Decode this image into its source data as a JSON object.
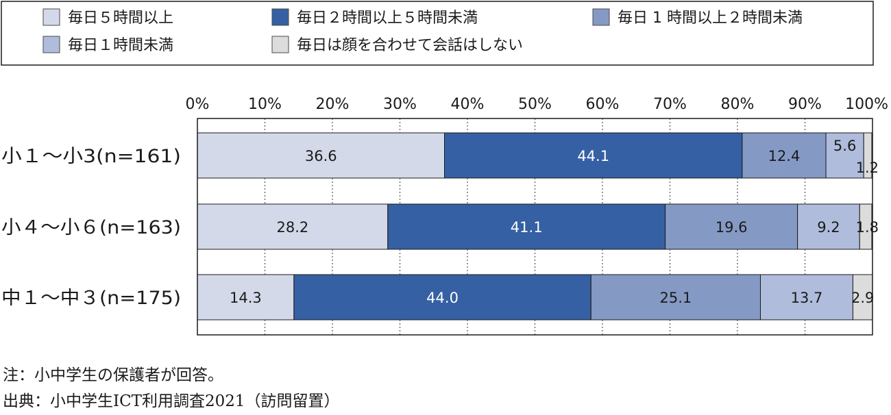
{
  "chart_data": {
    "type": "bar",
    "orientation": "horizontal",
    "stacked": true,
    "categories": [
      "小１～小3(n=161)",
      "小４～小６(n=163)",
      "中１～中３(n=175)"
    ],
    "series": [
      {
        "name": "毎日５時間以上",
        "color": "#d3d9e8",
        "label_color": "#1a1a1a",
        "values": [
          36.6,
          28.2,
          14.3
        ],
        "labels": [
          "36.6",
          "28.2",
          "14.3"
        ]
      },
      {
        "name": "毎日２時間以上５時間未満",
        "color": "#3560a3",
        "label_color": "#ffffff",
        "values": [
          44.1,
          41.1,
          44.0
        ],
        "labels": [
          "44.1",
          "41.1",
          "44.0"
        ]
      },
      {
        "name": "毎日 1 時間以上２時間未満",
        "color": "#8599c5",
        "label_color": "#1a1a1a",
        "values": [
          12.4,
          19.6,
          25.1
        ],
        "labels": [
          "12.4",
          "19.6",
          "25.1"
        ]
      },
      {
        "name": "毎日１時間未満",
        "color": "#b0bcdc",
        "label_color": "#1a1a1a",
        "values": [
          5.6,
          9.2,
          13.7
        ],
        "labels": [
          "5.6",
          "9.2",
          "13.7"
        ]
      },
      {
        "name": "毎日は顔を合わせて会話はしない",
        "color": "#dcdcdc",
        "label_color": "#1a1a1a",
        "values": [
          1.2,
          1.8,
          2.9
        ],
        "labels": [
          "1.2",
          "1.8",
          "2.9"
        ]
      }
    ],
    "xlim": [
      0,
      100
    ],
    "x_ticks": [
      "0%",
      "10%",
      "20%",
      "30%",
      "40%",
      "50%",
      "60%",
      "70%",
      "80%",
      "90%",
      "100%"
    ],
    "grid": "vertical dotted",
    "legend_position": "top"
  },
  "notes": {
    "note": "注：小中学生の保護者が回答。",
    "source": "出典：小中学生ICT利用調査2021（訪問留置）"
  }
}
